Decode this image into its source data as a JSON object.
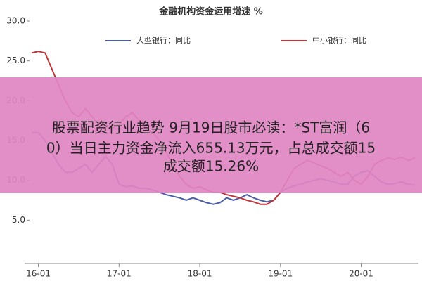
{
  "chart_data": {
    "type": "line",
    "title": "金融机构资金运用增速 %",
    "categories": [
      null,
      "16-01",
      null,
      null,
      null,
      null,
      null,
      null,
      null,
      null,
      null,
      null,
      null,
      "17-01",
      null,
      null,
      null,
      null,
      null,
      null,
      null,
      null,
      null,
      null,
      null,
      "18-01",
      null,
      null,
      null,
      null,
      null,
      null,
      null,
      null,
      null,
      null,
      null,
      "19-01",
      null,
      null,
      null,
      null,
      null,
      null,
      null,
      null,
      null,
      null,
      null,
      "20-01",
      null,
      null,
      null,
      null,
      null,
      null,
      null,
      null
    ],
    "series": [
      {
        "name": "大型银行：同比",
        "color": "#4a5fa8",
        "values": [
          16,
          16,
          15,
          13.5,
          12,
          11,
          11,
          11.5,
          12,
          11,
          12,
          13,
          12,
          9.5,
          9.2,
          9.3,
          9,
          9,
          8.8,
          8.5,
          8.2,
          8,
          7.8,
          7.5,
          7.8,
          7.5,
          7.2,
          7,
          7.2,
          7.8,
          7.5,
          7.8,
          8.2,
          7.8,
          7.5,
          7.3,
          7.5,
          8.5,
          9,
          9.3,
          9.5,
          9.8,
          10,
          10.2,
          10,
          9.8,
          9.5,
          9.5,
          10.5,
          11,
          11.2,
          10.5,
          9.8,
          9.5,
          9.6,
          9.8,
          9.5,
          9.4
        ]
      },
      {
        "name": "中小银行：同比",
        "color": "#c0353a",
        "values": [
          26,
          26.2,
          26,
          24,
          22,
          20,
          18.5,
          18,
          19,
          18,
          17,
          17,
          16.5,
          17,
          18,
          18.5,
          17.5,
          16.5,
          16,
          15,
          13.5,
          12,
          10.5,
          9.5,
          9,
          9.2,
          8.8,
          8.5,
          8.5,
          8.2,
          8,
          7.8,
          7.5,
          7.3,
          7,
          7,
          7.5,
          8.5,
          10,
          11.5,
          12,
          12.5,
          12.2,
          11.8,
          11.5,
          11,
          10.5,
          11,
          10,
          9.5,
          10.5,
          12,
          12.5,
          12.8,
          12.6,
          12.9,
          12.5,
          12.8
        ]
      }
    ],
    "ylim": [
      0,
      30
    ],
    "yticks": [
      {
        "value": 5,
        "label": "5.0"
      },
      {
        "value": 10,
        "label": "10.0"
      },
      {
        "value": 15,
        "label": "15.0"
      },
      {
        "value": 20,
        "label": "20.0"
      },
      {
        "value": 25,
        "label": "25.0"
      },
      {
        "value": 30,
        "label": "30.0"
      }
    ]
  },
  "overlay": {
    "lines": [
      "股票配资行业趋势 9月19日股市必读：*ST富润（6",
      "0）当日主力资金净流入655.13万元，占总成交额15",
      "成交额15.26%"
    ]
  }
}
